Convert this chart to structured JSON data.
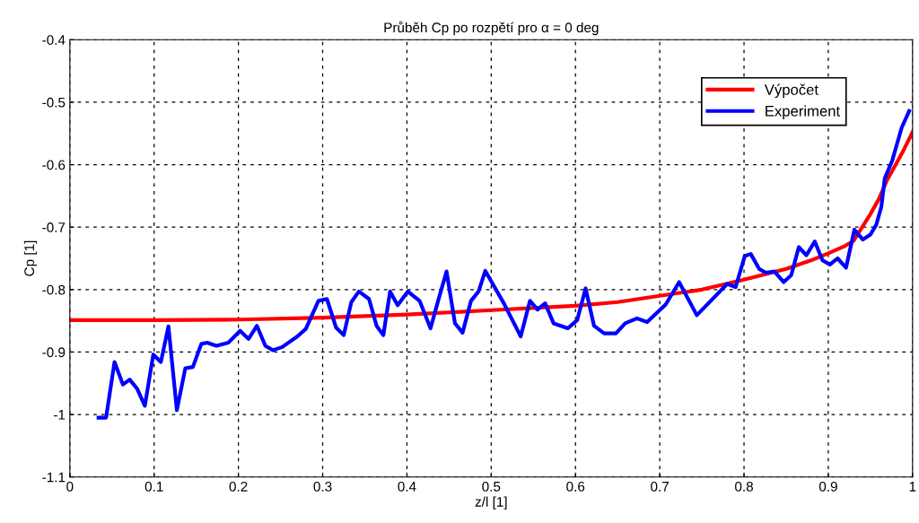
{
  "chart_data": {
    "type": "line",
    "title": "Průběh Cp po rozpětí pro α = 0 deg",
    "xlabel": "z/l [1]",
    "ylabel": "Cp [1]",
    "xlim": [
      0,
      1
    ],
    "ylim": [
      -1.1,
      -0.4
    ],
    "xticks": [
      0,
      0.1,
      0.2,
      0.3,
      0.4,
      0.5,
      0.6,
      0.7,
      0.8,
      0.9,
      1
    ],
    "yticks": [
      -1.1,
      -1,
      -0.9,
      -0.8,
      -0.7,
      -0.6,
      -0.5,
      -0.4
    ],
    "grid": true,
    "legend": "top right",
    "line_style": "solid",
    "marker": "none",
    "series": [
      {
        "name": "Výpočet",
        "color": "#ff0000",
        "x": [
          0,
          0.1,
          0.2,
          0.3,
          0.4,
          0.5,
          0.6,
          0.65,
          0.7,
          0.75,
          0.8,
          0.85,
          0.88,
          0.9,
          0.92,
          0.93,
          0.95,
          0.96,
          0.97,
          0.98,
          0.99,
          1
        ],
        "values": [
          -0.849,
          -0.849,
          -0.848,
          -0.845,
          -0.84,
          -0.833,
          -0.826,
          -0.82,
          -0.81,
          -0.8,
          -0.784,
          -0.767,
          -0.753,
          -0.742,
          -0.73,
          -0.722,
          -0.679,
          -0.655,
          -0.624,
          -0.6,
          -0.575,
          -0.548
        ]
      },
      {
        "name": "Experiment",
        "color": "#0000ff",
        "x": [
          0.034,
          0.043,
          0.053,
          0.063,
          0.071,
          0.08,
          0.089,
          0.099,
          0.108,
          0.117,
          0.127,
          0.137,
          0.146,
          0.156,
          0.163,
          0.174,
          0.188,
          0.202,
          0.212,
          0.222,
          0.232,
          0.241,
          0.252,
          0.27,
          0.28,
          0.295,
          0.305,
          0.316,
          0.325,
          0.334,
          0.343,
          0.355,
          0.364,
          0.372,
          0.38,
          0.389,
          0.401,
          0.415,
          0.428,
          0.437,
          0.447,
          0.457,
          0.466,
          0.476,
          0.485,
          0.493,
          0.515,
          0.535,
          0.546,
          0.555,
          0.564,
          0.574,
          0.591,
          0.602,
          0.612,
          0.622,
          0.634,
          0.648,
          0.659,
          0.673,
          0.685,
          0.707,
          0.723,
          0.744,
          0.78,
          0.79,
          0.801,
          0.808,
          0.818,
          0.826,
          0.836,
          0.847,
          0.856,
          0.865,
          0.874,
          0.884,
          0.893,
          0.902,
          0.911,
          0.921,
          0.931,
          0.941,
          0.95,
          0.957,
          0.963,
          0.967,
          0.976,
          0.987,
          0.996
        ],
        "values": [
          -1.005,
          -1.005,
          -0.916,
          -0.952,
          -0.944,
          -0.959,
          -0.986,
          -0.904,
          -0.916,
          -0.859,
          -0.993,
          -0.926,
          -0.924,
          -0.887,
          -0.885,
          -0.89,
          -0.885,
          -0.866,
          -0.879,
          -0.858,
          -0.89,
          -0.897,
          -0.892,
          -0.875,
          -0.863,
          -0.818,
          -0.815,
          -0.861,
          -0.873,
          -0.82,
          -0.803,
          -0.815,
          -0.858,
          -0.873,
          -0.803,
          -0.825,
          -0.803,
          -0.818,
          -0.862,
          -0.818,
          -0.771,
          -0.854,
          -0.869,
          -0.818,
          -0.803,
          -0.77,
          -0.822,
          -0.875,
          -0.818,
          -0.832,
          -0.822,
          -0.854,
          -0.862,
          -0.849,
          -0.798,
          -0.858,
          -0.87,
          -0.87,
          -0.854,
          -0.846,
          -0.852,
          -0.824,
          -0.788,
          -0.841,
          -0.791,
          -0.796,
          -0.746,
          -0.743,
          -0.767,
          -0.773,
          -0.771,
          -0.788,
          -0.777,
          -0.732,
          -0.745,
          -0.723,
          -0.753,
          -0.76,
          -0.75,
          -0.765,
          -0.704,
          -0.72,
          -0.712,
          -0.696,
          -0.667,
          -0.622,
          -0.593,
          -0.541,
          -0.514
        ]
      }
    ]
  }
}
